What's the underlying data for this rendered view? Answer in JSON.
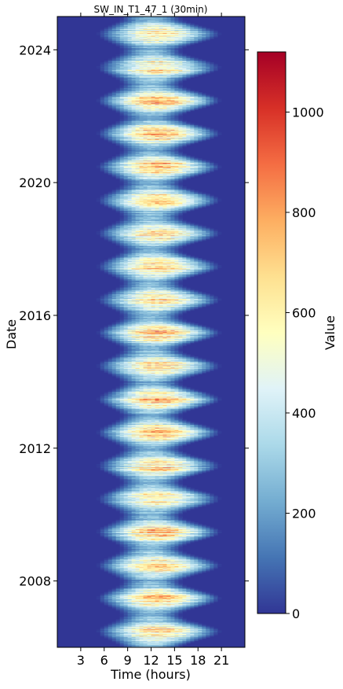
{
  "chart_data": {
    "type": "heatmap",
    "title": "SW_IN_T1_47_1 (30min)",
    "xlabel": "Time (hours)",
    "ylabel": "Date",
    "colorbar_label": "Value",
    "x_ticks": [
      3,
      6,
      9,
      12,
      15,
      18,
      21
    ],
    "x_range": [
      0,
      24
    ],
    "y_ticks": [
      "2008",
      "2012",
      "2016",
      "2020",
      "2024"
    ],
    "y_range": [
      "2006-01-01",
      "2025-01-01"
    ],
    "colorbar_ticks": [
      0,
      200,
      400,
      600,
      800,
      1000
    ],
    "value_range": [
      0,
      1120
    ],
    "colormap": "RdYlBu_r",
    "colormap_stops": [
      "#313695",
      "#4575b4",
      "#74add1",
      "#abd9e9",
      "#e0f3f8",
      "#ffffbf",
      "#fee090",
      "#fdae61",
      "#f46d43",
      "#d73027",
      "#a50026"
    ],
    "years": [
      2006,
      2007,
      2008,
      2009,
      2010,
      2011,
      2012,
      2013,
      2014,
      2015,
      2016,
      2017,
      2018,
      2019,
      2020,
      2021,
      2022,
      2023,
      2024
    ],
    "summer_peak_irradiance": [
      900,
      880,
      920,
      930,
      860,
      900,
      980,
      990,
      900,
      980,
      900,
      950,
      920,
      900,
      990,
      950,
      1000,
      880,
      850
    ],
    "winter_peak_irradiance": 350,
    "summer_daylight_hours": [
      5,
      21
    ],
    "winter_daylight_hours": [
      8,
      16
    ]
  }
}
